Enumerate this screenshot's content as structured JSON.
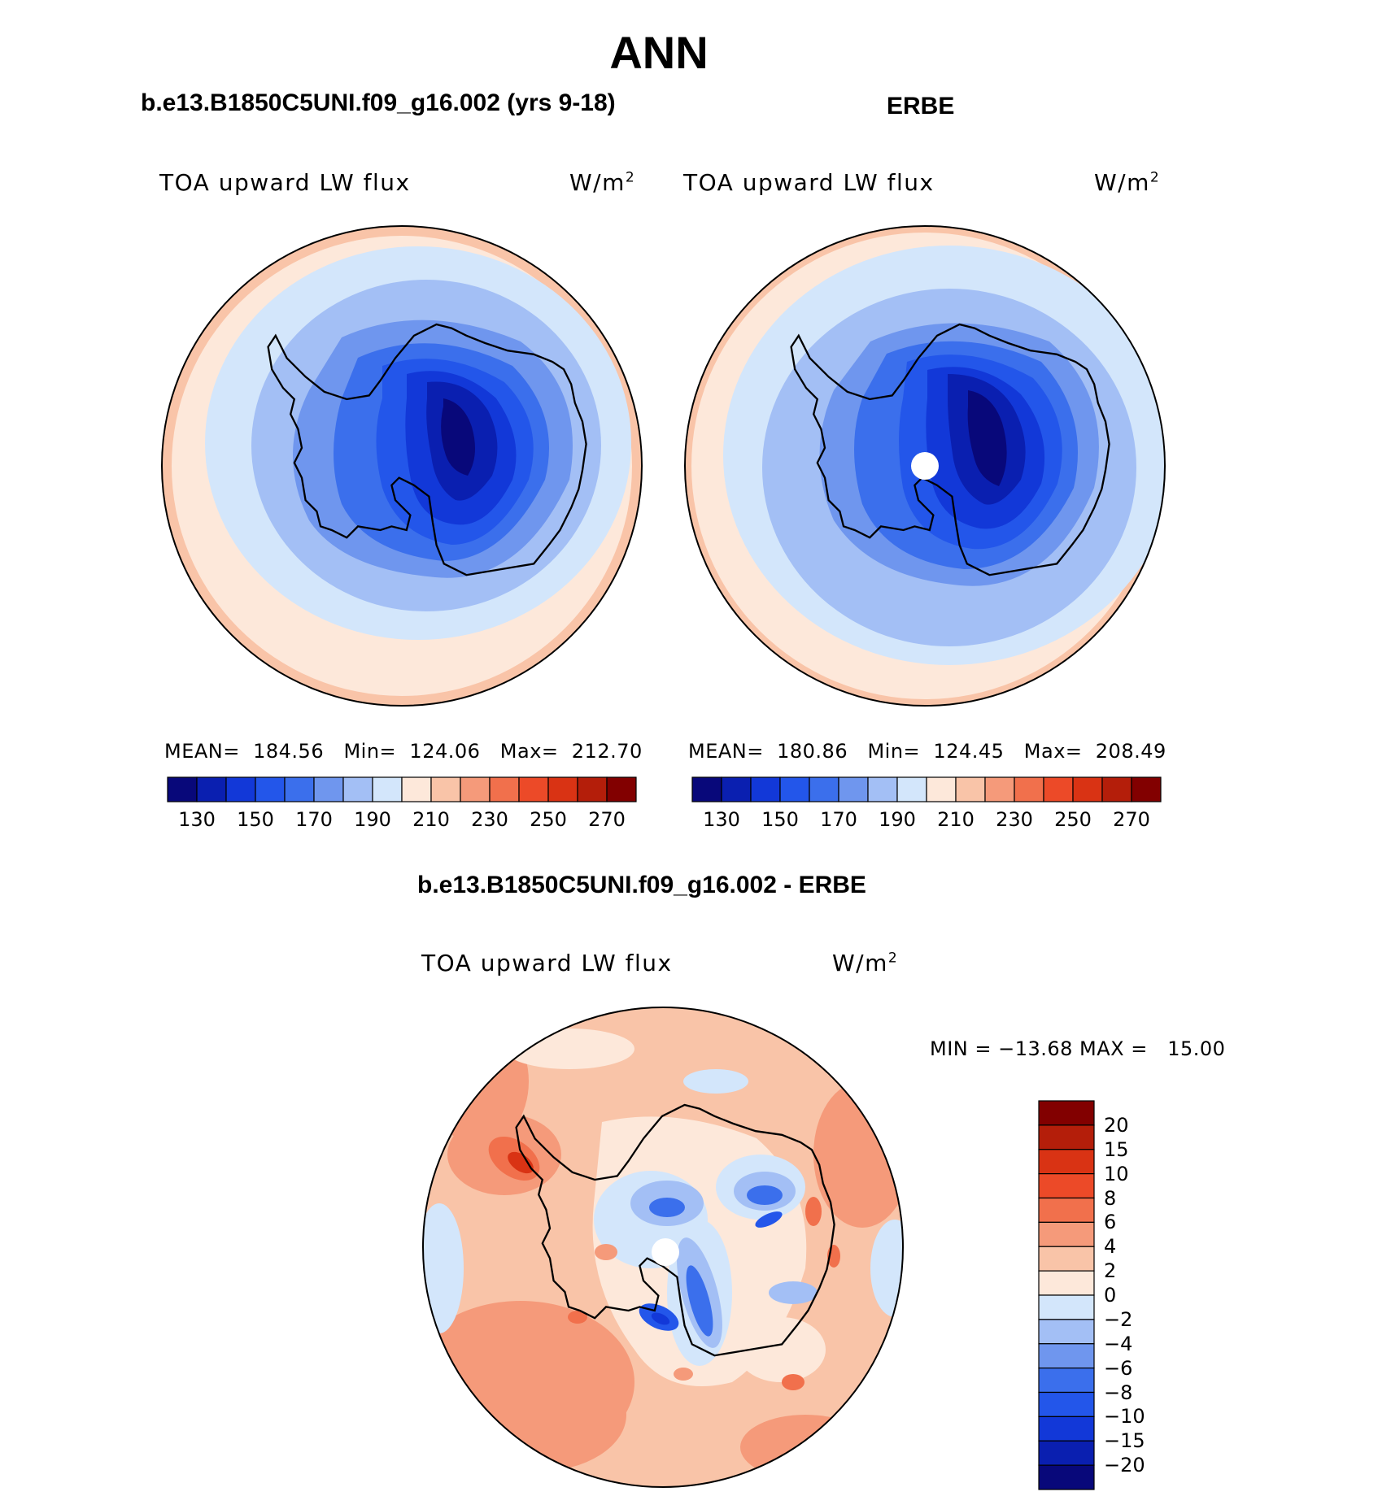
{
  "title": "ANN",
  "panels": [
    {
      "title": "b.e13.B1850C5UNI.f09_g16.002 (yrs 9-18)",
      "variable": "TOA upward LW flux",
      "units_base": "W/m",
      "units_exp": "2",
      "stats": "MEAN=  184.56   Min=  124.06   Max=  212.70"
    },
    {
      "title": "ERBE",
      "variable": "TOA upward LW flux",
      "units_base": "W/m",
      "units_exp": "2",
      "stats": "MEAN=  180.86   Min=  124.45   Max=  208.49"
    },
    {
      "title": "b.e13.B1850C5UNI.f09_g16.002 - ERBE",
      "variable": "TOA upward LW flux",
      "units_base": "W/m",
      "units_exp": "2",
      "stats": "MIN = −13.68 MAX =   15.00"
    }
  ],
  "chart_data": [
    {
      "type": "heatmap",
      "projection": "south polar stereographic",
      "title": "b.e13.B1850C5UNI.f09_g16.002 (yrs 9-18)",
      "variable": "TOA upward LW flux",
      "units": "W/m2",
      "stats": {
        "mean": 184.56,
        "min": 124.06,
        "max": 212.7
      },
      "colorbar": {
        "orientation": "horizontal",
        "levels": [
          130,
          140,
          150,
          160,
          170,
          180,
          190,
          200,
          210,
          220,
          230,
          240,
          250,
          260,
          270
        ],
        "tick_labels": [
          "130",
          "150",
          "170",
          "190",
          "210",
          "230",
          "250",
          "270"
        ],
        "colors": [
          "#08087a",
          "#0a1fb0",
          "#1238d8",
          "#2356ea",
          "#3b6fec",
          "#6f96ee",
          "#a3bff5",
          "#d3e6fb",
          "#fde8da",
          "#f9c4a8",
          "#f59a7a",
          "#f1704c",
          "#ec4a28",
          "#d93314",
          "#b41e0a",
          "#820000"
        ]
      }
    },
    {
      "type": "heatmap",
      "projection": "south polar stereographic",
      "title": "ERBE",
      "variable": "TOA upward LW flux",
      "units": "W/m2",
      "stats": {
        "mean": 180.86,
        "min": 124.45,
        "max": 208.49
      },
      "colorbar": {
        "orientation": "horizontal",
        "levels": [
          130,
          140,
          150,
          160,
          170,
          180,
          190,
          200,
          210,
          220,
          230,
          240,
          250,
          260,
          270
        ],
        "tick_labels": [
          "130",
          "150",
          "170",
          "190",
          "210",
          "230",
          "250",
          "270"
        ],
        "colors": [
          "#08087a",
          "#0a1fb0",
          "#1238d8",
          "#2356ea",
          "#3b6fec",
          "#6f96ee",
          "#a3bff5",
          "#d3e6fb",
          "#fde8da",
          "#f9c4a8",
          "#f59a7a",
          "#f1704c",
          "#ec4a28",
          "#d93314",
          "#b41e0a",
          "#820000"
        ]
      }
    },
    {
      "type": "heatmap",
      "projection": "south polar stereographic",
      "title": "b.e13.B1850C5UNI.f09_g16.002 - ERBE",
      "variable": "TOA upward LW flux",
      "units": "W/m2",
      "stats": {
        "min": -13.68,
        "max": 15.0
      },
      "colorbar": {
        "orientation": "vertical",
        "levels": [
          -20,
          -15,
          -10,
          -8,
          -6,
          -4,
          -2,
          0,
          2,
          4,
          6,
          8,
          10,
          15,
          20
        ],
        "tick_labels": [
          "20",
          "15",
          "10",
          "8",
          "6",
          "4",
          "2",
          "0",
          "−2",
          "−4",
          "−6",
          "−8",
          "−10",
          "−15",
          "−20"
        ],
        "colors": [
          "#08087a",
          "#0a1fb0",
          "#1238d8",
          "#2356ea",
          "#3b6fec",
          "#6f96ee",
          "#a3bff5",
          "#d3e6fb",
          "#fde8da",
          "#f9c4a8",
          "#f59a7a",
          "#f1704c",
          "#ec4a28",
          "#d93314",
          "#b41e0a",
          "#820000"
        ]
      }
    }
  ]
}
